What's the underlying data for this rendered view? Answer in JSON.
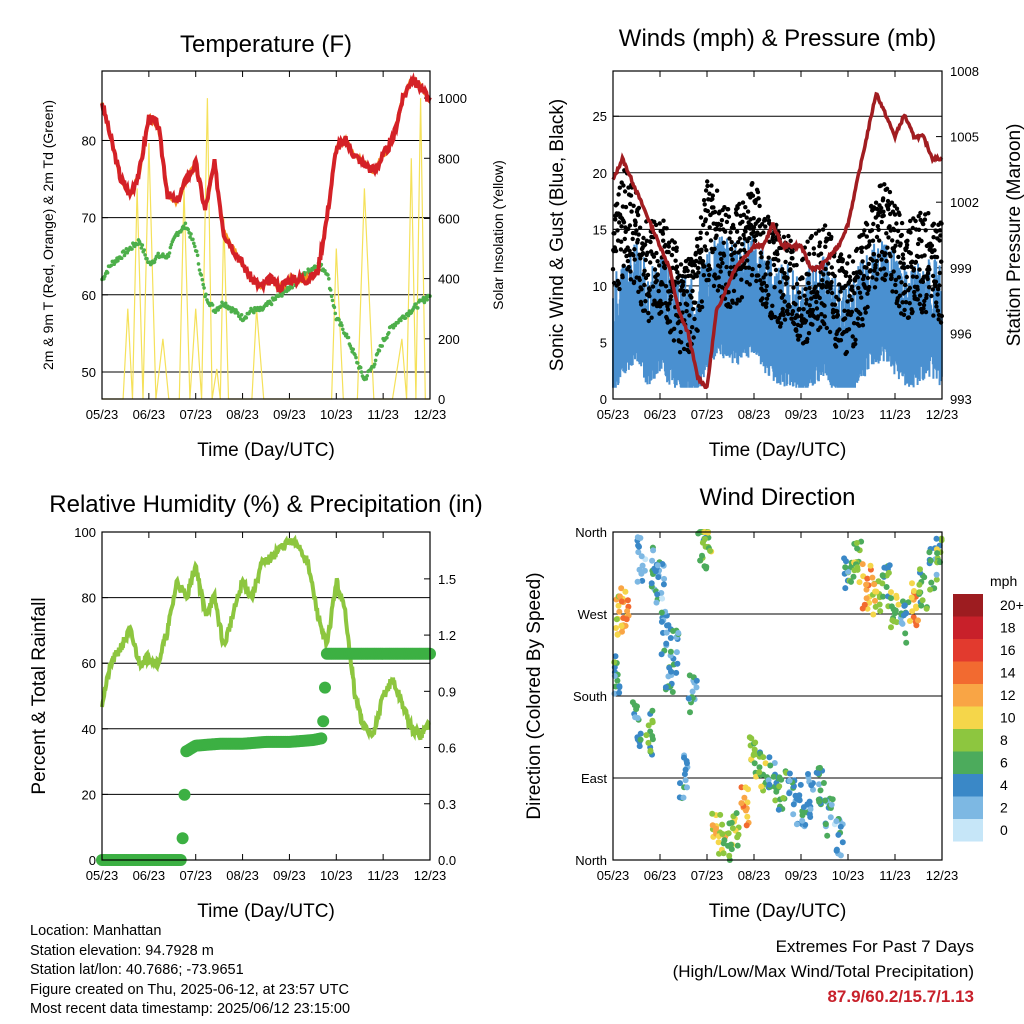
{
  "chart_data": [
    {
      "type": "line",
      "title": "Temperature (F)",
      "xlabel": "Time (Day/UTC)",
      "ylabel": "2m & 9m T (Red, Orange) & 2m Td (Green)",
      "ylabel_right": "Solar Insolation (Yellow)",
      "x_ticks": [
        "05/23",
        "06/23",
        "07/23",
        "08/23",
        "09/23",
        "10/23",
        "11/23",
        "12/23"
      ],
      "y_ticks": [
        50,
        60,
        70,
        80
      ],
      "ylim": [
        46.5,
        89
      ],
      "y2_ticks": [
        0,
        200,
        400,
        600,
        800,
        1000
      ],
      "y2lim": [
        0,
        1090
      ],
      "grid": true,
      "series": [
        {
          "color": "#d42127",
          "axis": "left",
          "x": [
            0,
            0.2,
            0.4,
            0.6,
            0.8,
            1.0,
            1.2,
            1.4,
            1.6,
            1.8,
            2.0,
            2.2,
            2.4,
            2.6,
            2.8,
            3.0,
            3.2,
            3.4,
            3.6,
            3.8,
            4.0,
            4.2,
            4.4,
            4.6,
            4.8,
            5.0,
            5.2,
            5.4,
            5.6,
            5.8,
            6.0,
            6.2,
            6.4,
            6.6,
            6.8,
            7.0
          ],
          "values": [
            85,
            80,
            75,
            73,
            76,
            83,
            82,
            73,
            72,
            75,
            77,
            71,
            77,
            68,
            66,
            64,
            62,
            61,
            62,
            61,
            62,
            62,
            62,
            63,
            70,
            79,
            80,
            78,
            77,
            76,
            78,
            80,
            85,
            88,
            87,
            85
          ]
        },
        {
          "color": "#f7941d",
          "axis": "left",
          "x": [
            0,
            0.2,
            0.4,
            0.6,
            0.8,
            1.0,
            1.2,
            1.4,
            1.6,
            1.8,
            2.0,
            2.2,
            2.4,
            2.6,
            2.8,
            3.0,
            3.2,
            3.4,
            3.6,
            3.8,
            4.0,
            4.2,
            4.4,
            4.6,
            4.8,
            5.0,
            5.2,
            5.4,
            5.6,
            5.8,
            6.0,
            6.2,
            6.4,
            6.6,
            6.8,
            7.0
          ],
          "values": [
            85,
            80,
            75,
            73,
            76,
            83,
            82,
            73,
            72,
            75,
            77,
            71,
            77,
            68,
            66,
            64,
            62,
            61,
            62,
            61,
            62,
            62,
            62,
            63,
            70,
            79,
            80,
            78,
            77,
            76,
            78,
            80,
            85,
            88,
            87,
            85
          ]
        },
        {
          "color": "#4daf4a",
          "axis": "left",
          "x": [
            0,
            0.2,
            0.4,
            0.6,
            0.8,
            1.0,
            1.2,
            1.4,
            1.6,
            1.8,
            2.0,
            2.2,
            2.4,
            2.6,
            2.8,
            3.0,
            3.2,
            3.4,
            3.6,
            3.8,
            4.0,
            4.2,
            4.4,
            4.6,
            4.8,
            5.0,
            5.2,
            5.4,
            5.6,
            5.8,
            6.0,
            6.2,
            6.4,
            6.6,
            6.8,
            7.0
          ],
          "values": [
            62,
            64,
            65,
            66,
            67,
            64,
            65,
            65,
            68,
            69,
            66,
            60,
            58,
            59,
            58,
            57,
            58,
            58,
            59,
            60,
            61,
            62,
            63,
            64,
            63,
            57,
            55,
            52,
            49,
            51,
            54,
            56,
            57,
            58,
            59,
            60
          ]
        },
        {
          "color": "#f5e15a",
          "axis": "right",
          "x": [
            0,
            0.35,
            0.55,
            0.75,
            1.0,
            1.3,
            1.55,
            1.75,
            2.0,
            2.25,
            2.45,
            2.6,
            2.8,
            3.1,
            3.3,
            3.6,
            4.0,
            4.5,
            4.8,
            5.0,
            5.3,
            5.6,
            6.0,
            6.4,
            6.6,
            6.8,
            7.0
          ],
          "values": [
            0,
            0,
            300,
            700,
            850,
            200,
            0,
            700,
            300,
            1000,
            100,
            600,
            0,
            0,
            300,
            0,
            0,
            0,
            0,
            500,
            0,
            700,
            0,
            200,
            800,
            1000,
            0
          ]
        }
      ]
    },
    {
      "type": "line",
      "title": "Winds (mph) & Pressure (mb)",
      "xlabel": "Time (Day/UTC)",
      "ylabel": "Sonic Wind & Gust (Blue, Black)",
      "ylabel_right": "Station Pressure (Maroon)",
      "x_ticks": [
        "05/23",
        "06/23",
        "07/23",
        "08/23",
        "09/23",
        "10/23",
        "11/23",
        "12/23"
      ],
      "y_ticks": [
        0,
        5,
        10,
        15,
        20,
        25
      ],
      "ylim": [
        0,
        29
      ],
      "y2_ticks": [
        993,
        996,
        999,
        1002,
        1005,
        1008
      ],
      "y2lim": [
        993,
        1008
      ],
      "grid": true,
      "series": [
        {
          "color": "#4a90d0",
          "axis": "left",
          "x": [
            0,
            0.25,
            0.5,
            0.75,
            1.0,
            1.25,
            1.5,
            1.75,
            2.0,
            2.25,
            2.5,
            2.75,
            3.0,
            3.25,
            3.5,
            3.75,
            4.0,
            4.25,
            4.5,
            4.75,
            5.0,
            5.25,
            5.5,
            5.75,
            6.0,
            6.25,
            6.5,
            6.75,
            7.0
          ],
          "values": [
            5,
            7,
            8,
            6,
            7,
            6,
            5,
            5,
            7,
            9,
            8,
            8,
            9,
            7,
            6,
            6,
            5,
            6,
            7,
            5,
            4,
            6,
            8,
            8,
            7,
            6,
            6,
            7,
            6
          ]
        },
        {
          "color": "#000000",
          "axis": "left",
          "x": [
            0,
            0.25,
            0.5,
            0.75,
            1.0,
            1.25,
            1.5,
            1.75,
            2.0,
            2.25,
            2.5,
            2.75,
            3.0,
            3.25,
            3.5,
            3.75,
            4.0,
            4.25,
            4.5,
            4.75,
            5.0,
            5.25,
            5.5,
            5.75,
            6.0,
            6.25,
            6.5,
            6.75,
            7.0
          ],
          "values": [
            12,
            16,
            14,
            11,
            12,
            10,
            8,
            9,
            15,
            14,
            12,
            13,
            15,
            12,
            11,
            10,
            9,
            10,
            11,
            9,
            8,
            10,
            13,
            15,
            13,
            11,
            12,
            12,
            11
          ]
        },
        {
          "color": "#a11d21",
          "axis": "right",
          "x": [
            0,
            0.2,
            0.4,
            0.6,
            0.8,
            1.0,
            1.2,
            1.4,
            1.6,
            1.8,
            2.0,
            2.2,
            2.4,
            2.6,
            2.8,
            3.0,
            3.2,
            3.4,
            3.6,
            3.8,
            4.0,
            4.2,
            4.4,
            4.6,
            4.8,
            5.0,
            5.2,
            5.4,
            5.6,
            5.8,
            6.0,
            6.2,
            6.4,
            6.6,
            6.8,
            7.0
          ],
          "values": [
            1003,
            1004,
            1003,
            1002,
            1001,
            1000,
            999,
            997,
            996,
            994,
            993.5,
            997,
            998,
            999,
            999.5,
            1000,
            1000,
            1001,
            1000,
            1000,
            1000,
            999,
            999,
            999.5,
            1000,
            1001,
            1003,
            1005,
            1007,
            1006,
            1005,
            1006,
            1005,
            1005,
            1004,
            1004
          ]
        }
      ]
    },
    {
      "type": "line",
      "title": "Relative Humidity (%) & Precipitation (in)",
      "xlabel": "Time (Day/UTC)",
      "ylabel": "Percent & Total Rainfall",
      "x_ticks": [
        "05/23",
        "06/23",
        "07/23",
        "08/23",
        "09/23",
        "10/23",
        "11/23",
        "12/23"
      ],
      "y_ticks": [
        0,
        20,
        40,
        60,
        80,
        100
      ],
      "ylim": [
        0,
        100
      ],
      "y2_ticks": [
        "0.0",
        "0.3",
        "0.6",
        "0.9",
        "1.2",
        "1.5"
      ],
      "y2lim": [
        0,
        1.75
      ],
      "grid": true,
      "series": [
        {
          "color": "#8dc63f",
          "axis": "left",
          "x": [
            0,
            0.2,
            0.4,
            0.6,
            0.8,
            1.0,
            1.2,
            1.4,
            1.6,
            1.8,
            2.0,
            2.2,
            2.4,
            2.6,
            2.8,
            3.0,
            3.2,
            3.4,
            3.6,
            3.8,
            4.0,
            4.2,
            4.4,
            4.6,
            4.8,
            5.0,
            5.2,
            5.4,
            5.6,
            5.8,
            6.0,
            6.2,
            6.4,
            6.6,
            6.8,
            7.0
          ],
          "values": [
            48,
            60,
            65,
            70,
            60,
            62,
            60,
            70,
            85,
            80,
            90,
            75,
            80,
            65,
            75,
            85,
            80,
            90,
            92,
            95,
            97,
            96,
            90,
            75,
            65,
            85,
            75,
            50,
            40,
            38,
            50,
            55,
            48,
            40,
            38,
            42
          ]
        },
        {
          "color": "#3cb043",
          "axis": "right",
          "x": [
            0,
            0.5,
            1.0,
            1.5,
            1.7,
            1.8,
            2.0,
            2.5,
            3.0,
            3.5,
            4.0,
            4.5,
            4.7,
            4.8,
            5.0,
            5.5,
            6.0,
            6.5,
            7.0
          ],
          "values": [
            0,
            0,
            0,
            0,
            0,
            0.58,
            0.61,
            0.62,
            0.62,
            0.63,
            0.63,
            0.64,
            0.65,
            1.1,
            1.1,
            1.1,
            1.1,
            1.1,
            1.1
          ]
        }
      ]
    },
    {
      "type": "scatter",
      "title": "Wind Direction",
      "xlabel": "Time (Day/UTC)",
      "ylabel": "Direction (Colored By Speed)",
      "x_ticks": [
        "05/23",
        "06/23",
        "07/23",
        "08/23",
        "09/23",
        "10/23",
        "11/23",
        "12/23"
      ],
      "y_ticks": [
        "North",
        "East",
        "South",
        "West",
        "North"
      ],
      "grid": true,
      "colorbar": {
        "title": "mph",
        "labels": [
          "20+",
          "18",
          "16",
          "14",
          "12",
          "10",
          "8",
          "6",
          "4",
          "2",
          "0"
        ],
        "colors": [
          "#9d1c20",
          "#c8202a",
          "#e23a2e",
          "#f26a30",
          "#f9a545",
          "#f5d64a",
          "#8dc63f",
          "#4cab5c",
          "#3a88c7",
          "#7db8e3",
          "#c6e6f8"
        ]
      },
      "series": [
        {
          "x": [
            0.05,
            0.15,
            0.25,
            0.5,
            0.6,
            0.8,
            0.9,
            1.0,
            1.1,
            1.2,
            1.3,
            1.5,
            1.7,
            1.9,
            2.0,
            2.2,
            2.4,
            2.6,
            2.8,
            3.0,
            3.2,
            3.4,
            3.6,
            3.8,
            4.0,
            4.2,
            4.4,
            4.6,
            4.8,
            5.0,
            5.2,
            5.4,
            5.6,
            5.8,
            6.0,
            6.2,
            6.4,
            6.6,
            6.8,
            6.95
          ],
          "values": [
            200,
            270,
            280,
            150,
            330,
            140,
            320,
            300,
            250,
            200,
            230,
            90,
            180,
            340,
            360,
            30,
            20,
            30,
            60,
            110,
            100,
            90,
            80,
            70,
            60,
            70,
            80,
            50,
            30,
            320,
            330,
            300,
            290,
            300,
            270,
            260,
            280,
            300,
            320,
            330
          ],
          "speeds": [
            5,
            10,
            12,
            4,
            3,
            6,
            4,
            3,
            4,
            5,
            3,
            4,
            4,
            6,
            8,
            10,
            9,
            8,
            12,
            8,
            7,
            5,
            6,
            4,
            4,
            3,
            5,
            4,
            3,
            5,
            8,
            12,
            10,
            6,
            8,
            4,
            12,
            6,
            5,
            7
          ]
        }
      ]
    }
  ],
  "footer": {
    "location": "Location: Manhattan",
    "elevation": "Station elevation: 94.7928 m",
    "latlon": "Station lat/lon: 40.7686; -73.9651",
    "created": "Figure created on Thu, 2025-06-12, at 23:57 UTC",
    "latest": "Most recent data timestamp: 2025/06/12 23:15:00",
    "extremes_title": "Extremes For Past 7 Days",
    "extremes_subtitle": "(High/Low/Max Wind/Total Precipitation)",
    "extremes_values": "87.9/60.2/15.7/1.13",
    "extremes_color": "#c8212b"
  }
}
